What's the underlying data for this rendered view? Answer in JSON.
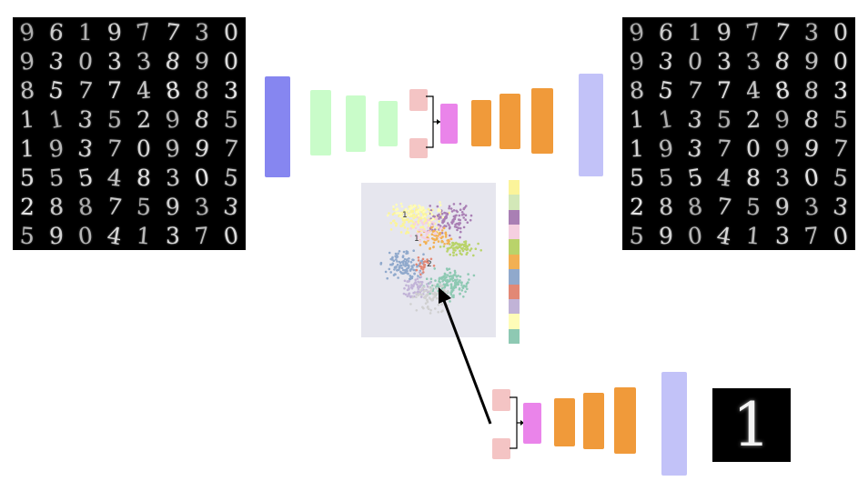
{
  "input_grid": {
    "digits": [
      "9",
      "6",
      "1",
      "9",
      "7",
      "7",
      "3",
      "0",
      "9",
      "3",
      "0",
      "3",
      "3",
      "8",
      "9",
      "0",
      "8",
      "5",
      "7",
      "7",
      "4",
      "8",
      "8",
      "3",
      "1",
      "1",
      "3",
      "5",
      "2",
      "9",
      "8",
      "5",
      "1",
      "9",
      "3",
      "7",
      "0",
      "9",
      "9",
      "7",
      "5",
      "5",
      "5",
      "4",
      "8",
      "3",
      "0",
      "5",
      "2",
      "8",
      "8",
      "7",
      "5",
      "9",
      "3",
      "3",
      "5",
      "9",
      "0",
      "4",
      "1",
      "3",
      "7",
      "0"
    ]
  },
  "output_grid": {
    "digits": [
      "9",
      "6",
      "1",
      "9",
      "7",
      "7",
      "3",
      "0",
      "9",
      "3",
      "0",
      "3",
      "3",
      "8",
      "9",
      "0",
      "8",
      "5",
      "7",
      "7",
      "4",
      "8",
      "8",
      "3",
      "1",
      "1",
      "3",
      "5",
      "2",
      "9",
      "8",
      "5",
      "1",
      "9",
      "3",
      "7",
      "0",
      "9",
      "9",
      "7",
      "5",
      "5",
      "5",
      "4",
      "8",
      "3",
      "0",
      "5",
      "2",
      "8",
      "8",
      "7",
      "5",
      "9",
      "3",
      "3",
      "5",
      "9",
      "0",
      "4",
      "1",
      "3",
      "7",
      "0"
    ]
  },
  "generated_digit": "1",
  "colors": {
    "input_layer": "#8686f0",
    "encoder_layer": "#c9fcc9",
    "latent_param": "#f4c4c4",
    "sample_node": "#ea84ea",
    "decoder_layer": "#f09a3a",
    "output_layer": "#c2c2f8",
    "plot_background": "#e6e6ee"
  },
  "latent_plot": {
    "point_labels": [
      "1",
      "1",
      "2"
    ],
    "colorbar_colors": [
      "#fbf49a",
      "#d3e8b8",
      "#a97fb4",
      "#f5cfe0",
      "#b9d36a",
      "#f2b053",
      "#90a9cc",
      "#e28875",
      "#c1b3d7",
      "#fefcb8",
      "#8ec9b3"
    ]
  }
}
